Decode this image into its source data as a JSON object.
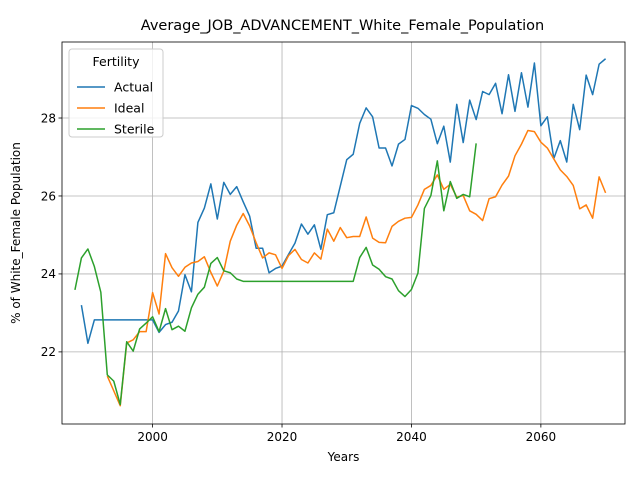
{
  "chart_data": {
    "type": "line",
    "title": "Average_JOB_ADVANCEMENT_White_Female_Population",
    "xlabel": "Years",
    "ylabel": "% of White_Female Population",
    "xlim": [
      1986,
      2073
    ],
    "ylim": [
      20.15,
      29.95
    ],
    "x_ticks": [
      2000,
      2020,
      2040,
      2060
    ],
    "y_ticks": [
      22,
      24,
      26,
      28
    ],
    "grid": true,
    "legend": {
      "title": "Fertility",
      "placement": "top-left"
    },
    "series": [
      {
        "name": "Actual",
        "color": "#1f77b4",
        "x": [
          1989,
          1990,
          1991,
          1992,
          1993,
          1994,
          1995,
          1996,
          1997,
          1998,
          1999,
          2000,
          2001,
          2002,
          2003,
          2004,
          2005,
          2006,
          2007,
          2008,
          2009,
          2010,
          2011,
          2012,
          2013,
          2014,
          2015,
          2016,
          2017,
          2018,
          2019,
          2020,
          2021,
          2022,
          2023,
          2024,
          2025,
          2026,
          2027,
          2028,
          2029,
          2030,
          2031,
          2032,
          2033,
          2034,
          2035,
          2036,
          2037,
          2038,
          2039,
          2040,
          2041,
          2042,
          2043,
          2044,
          2045,
          2046,
          2047,
          2048,
          2049,
          2050,
          2051,
          2052,
          2053,
          2054,
          2055,
          2056,
          2057,
          2058,
          2059,
          2060,
          2061,
          2062,
          2063,
          2064,
          2065,
          2066,
          2067,
          2068,
          2069,
          2070
        ],
        "y": [
          23.2,
          22.22,
          22.82,
          22.82,
          22.82,
          22.82,
          22.82,
          22.82,
          22.82,
          22.82,
          22.82,
          22.82,
          22.5,
          22.7,
          22.76,
          23.05,
          23.98,
          23.54,
          25.32,
          25.69,
          26.31,
          25.41,
          26.35,
          26.04,
          26.24,
          25.85,
          25.48,
          24.66,
          24.66,
          24.03,
          24.14,
          24.2,
          24.5,
          24.79,
          25.28,
          25.02,
          25.26,
          24.63,
          25.52,
          25.57,
          26.25,
          26.93,
          27.07,
          27.86,
          28.26,
          28.03,
          27.23,
          27.23,
          26.77,
          27.33,
          27.45,
          28.32,
          28.25,
          28.09,
          27.97,
          27.34,
          27.79,
          26.87,
          28.35,
          27.37,
          28.46,
          27.96,
          28.68,
          28.6,
          28.89,
          28.11,
          29.11,
          28.17,
          29.16,
          28.28,
          29.41,
          27.8,
          28.03,
          26.96,
          27.42,
          26.87,
          28.35,
          27.7,
          29.1,
          28.6,
          29.38,
          29.52
        ]
      },
      {
        "name": "Ideal",
        "color": "#ff7f0e",
        "x": [
          1993,
          1994,
          1995,
          1996,
          1997,
          1998,
          1999,
          2000,
          2001,
          2002,
          2003,
          2004,
          2005,
          2006,
          2007,
          2008,
          2009,
          2010,
          2011,
          2012,
          2013,
          2014,
          2015,
          2016,
          2017,
          2018,
          2019,
          2020,
          2021,
          2022,
          2023,
          2024,
          2025,
          2026,
          2027,
          2028,
          2029,
          2030,
          2031,
          2032,
          2033,
          2034,
          2035,
          2036,
          2037,
          2038,
          2039,
          2040,
          2041,
          2042,
          2043,
          2044,
          2045,
          2046,
          2047,
          2048,
          2049,
          2050,
          2051,
          2052,
          2053,
          2054,
          2055,
          2056,
          2057,
          2058,
          2059,
          2060,
          2061,
          2062,
          2063,
          2064,
          2065,
          2066,
          2067,
          2068,
          2069,
          2070
        ],
        "y": [
          21.38,
          21.0,
          20.62,
          22.23,
          22.31,
          22.52,
          22.52,
          23.52,
          22.97,
          24.52,
          24.16,
          23.94,
          24.17,
          24.28,
          24.32,
          24.44,
          24.04,
          23.69,
          24.07,
          24.84,
          25.25,
          25.55,
          25.23,
          24.8,
          24.41,
          24.54,
          24.49,
          24.14,
          24.47,
          24.63,
          24.37,
          24.28,
          24.54,
          24.38,
          25.15,
          24.84,
          25.19,
          24.93,
          24.96,
          24.96,
          25.46,
          24.92,
          24.81,
          24.8,
          25.22,
          25.35,
          25.43,
          25.45,
          25.77,
          26.17,
          26.27,
          26.54,
          26.17,
          26.3,
          25.97,
          26.01,
          25.62,
          25.53,
          25.37,
          25.93,
          25.98,
          26.28,
          26.51,
          27.03,
          27.33,
          27.68,
          27.65,
          27.38,
          27.23,
          26.95,
          26.67,
          26.5,
          26.27,
          25.67,
          25.77,
          25.43,
          26.49,
          26.08
        ]
      },
      {
        "name": "Sterile",
        "color": "#2ca02c",
        "x": [
          1988,
          1989,
          1990,
          1991,
          1992,
          1993,
          1994,
          1995,
          1996,
          1997,
          1998,
          1999,
          2000,
          2001,
          2002,
          2003,
          2004,
          2005,
          2006,
          2007,
          2008,
          2009,
          2010,
          2011,
          2012,
          2013,
          2014,
          2015,
          2016,
          2017,
          2018,
          2019,
          2020,
          2021,
          2022,
          2023,
          2024,
          2025,
          2026,
          2027,
          2028,
          2029,
          2030,
          2031,
          2032,
          2033,
          2034,
          2035,
          2036,
          2037,
          2038,
          2039,
          2040,
          2041,
          2042,
          2043,
          2044,
          2045,
          2046,
          2047,
          2048,
          2049,
          2050
        ],
        "y": [
          23.59,
          24.41,
          24.64,
          24.19,
          23.53,
          21.41,
          21.25,
          20.65,
          22.26,
          22.02,
          22.59,
          22.74,
          22.9,
          22.52,
          23.11,
          22.57,
          22.66,
          22.53,
          23.13,
          23.48,
          23.66,
          24.27,
          24.42,
          24.08,
          24.03,
          23.87,
          23.81,
          23.81,
          23.81,
          23.81,
          23.81,
          23.81,
          23.81,
          23.81,
          23.81,
          23.81,
          23.81,
          23.81,
          23.81,
          23.81,
          23.81,
          23.81,
          23.81,
          23.81,
          24.42,
          24.68,
          24.23,
          24.12,
          23.93,
          23.87,
          23.57,
          23.42,
          23.6,
          24.02,
          25.68,
          26.01,
          26.9,
          25.62,
          26.37,
          25.94,
          26.04,
          25.98,
          27.35
        ]
      }
    ]
  }
}
